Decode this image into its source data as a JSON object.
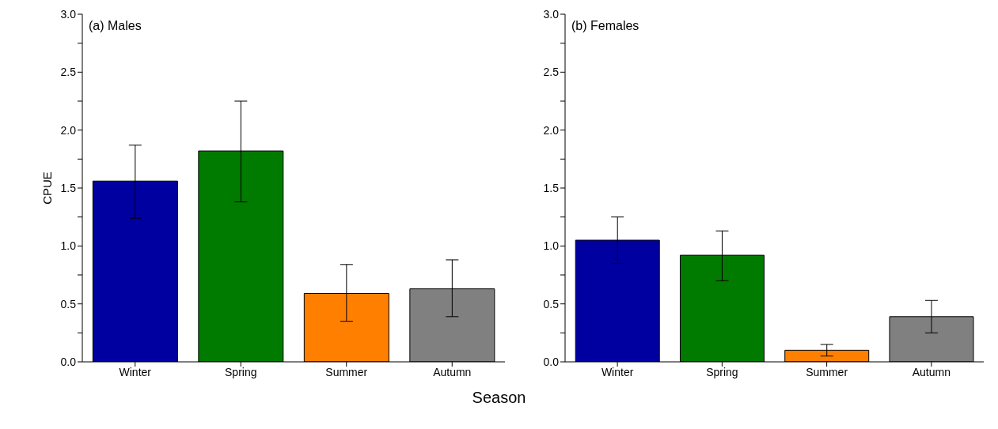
{
  "chart_data": [
    {
      "type": "bar",
      "title": "(a) Males",
      "ylabel": "CPUE",
      "xlabel": "Season",
      "categories": [
        "Winter",
        "Spring",
        "Summer",
        "Autumn"
      ],
      "values": [
        1.56,
        1.82,
        0.59,
        0.63
      ],
      "colors": [
        "#0000a0",
        "#007b00",
        "#ff8000",
        "#808080"
      ],
      "errors": [
        [
          1.24,
          1.87
        ],
        [
          1.38,
          2.25
        ],
        [
          0.35,
          0.84
        ],
        [
          0.39,
          0.88
        ]
      ],
      "ylim": [
        0,
        3
      ],
      "yticks": [
        {
          "value": 0,
          "label": "0.0"
        },
        {
          "value": 0.25,
          "label": null
        },
        {
          "value": 0.5,
          "label": "0.5"
        },
        {
          "value": 0.75,
          "label": null
        },
        {
          "value": 1,
          "label": "1.0"
        },
        {
          "value": 1.25,
          "label": null
        },
        {
          "value": 1.5,
          "label": "1.5"
        },
        {
          "value": 1.75,
          "label": null
        },
        {
          "value": 2,
          "label": "2.0"
        },
        {
          "value": 2.25,
          "label": null
        },
        {
          "value": 2.5,
          "label": "2.5"
        },
        {
          "value": 2.75,
          "label": null
        },
        {
          "value": 3,
          "label": "3.0"
        }
      ],
      "grid": false,
      "legend": false
    },
    {
      "type": "bar",
      "title": "(b) Females",
      "categories": [
        "Winter",
        "Spring",
        "Summer",
        "Autumn"
      ],
      "values": [
        1.05,
        0.92,
        0.1,
        0.39
      ],
      "colors": [
        "#0000a0",
        "#007b00",
        "#ff8000",
        "#808080"
      ],
      "errors": [
        [
          0.85,
          1.25
        ],
        [
          0.7,
          1.13
        ],
        [
          0.05,
          0.15
        ],
        [
          0.25,
          0.53
        ]
      ],
      "ylim": [
        0,
        3
      ],
      "yticks": [
        {
          "value": 0,
          "label": "0.0"
        },
        {
          "value": 0.25,
          "label": null
        },
        {
          "value": 0.5,
          "label": "0.5"
        },
        {
          "value": 0.75,
          "label": null
        },
        {
          "value": 1,
          "label": "1.0"
        },
        {
          "value": 1.25,
          "label": null
        },
        {
          "value": 1.5,
          "label": "1.5"
        },
        {
          "value": 1.75,
          "label": null
        },
        {
          "value": 2,
          "label": "2.0"
        },
        {
          "value": 2.25,
          "label": null
        },
        {
          "value": 2.5,
          "label": "2.5"
        },
        {
          "value": 2.75,
          "label": null
        },
        {
          "value": 3,
          "label": "3.0"
        }
      ],
      "grid": false,
      "legend": false
    }
  ]
}
